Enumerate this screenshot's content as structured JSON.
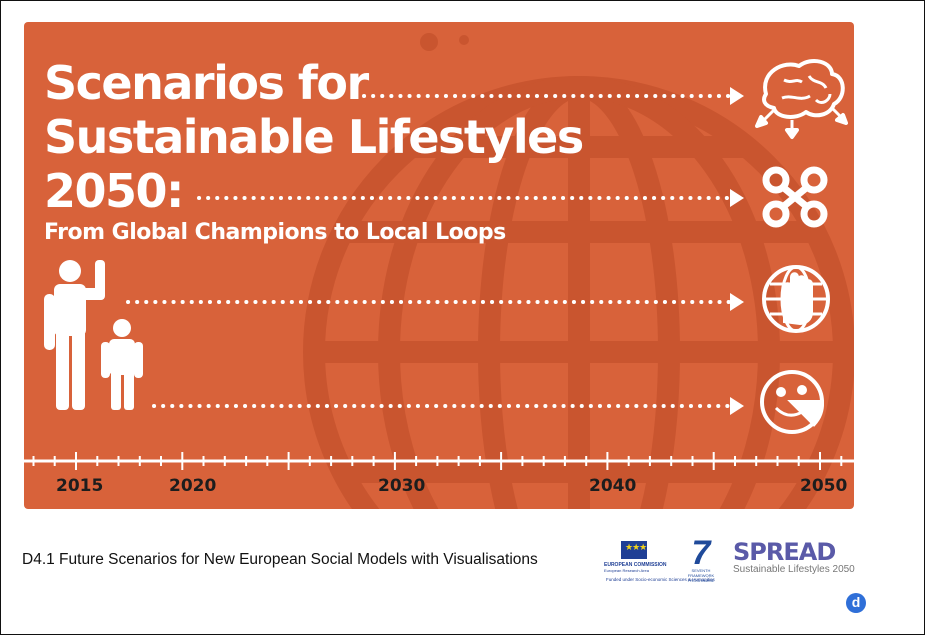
{
  "slide": {
    "title_line1": "Scenarios for",
    "title_line2": "Sustainable Lifestyles",
    "title_line3": "2050:",
    "subtitle": "From Global Champions to Local Loops",
    "timeline_years": [
      "2015",
      "2020",
      "2030",
      "2040",
      "2050"
    ],
    "scenario_icons": [
      "brain-icon",
      "loop-icon",
      "hand-globe-icon",
      "pizza-smile-icon"
    ],
    "colors": {
      "panel": "#d8623a",
      "globe": "#c9552f",
      "foreground": "#ffffff",
      "year_text": "#1d1d1d"
    }
  },
  "footer": {
    "title": "D4.1 Future Scenarios for New European Social Models with Visualisations",
    "eu_logo_line1": "EUROPEAN COMMISSION",
    "eu_logo_line2": "European Research Area",
    "eu_funded": "Funded under Socio-economic Sciences & Humanities",
    "fp7_number": "7",
    "fp7_text": "SEVENTH FRAMEWORK PROGRAMME",
    "spread_logo": "SPREAD",
    "spread_tagline": "Sustainable Lifestyles 2050",
    "badge_letter": "d"
  }
}
